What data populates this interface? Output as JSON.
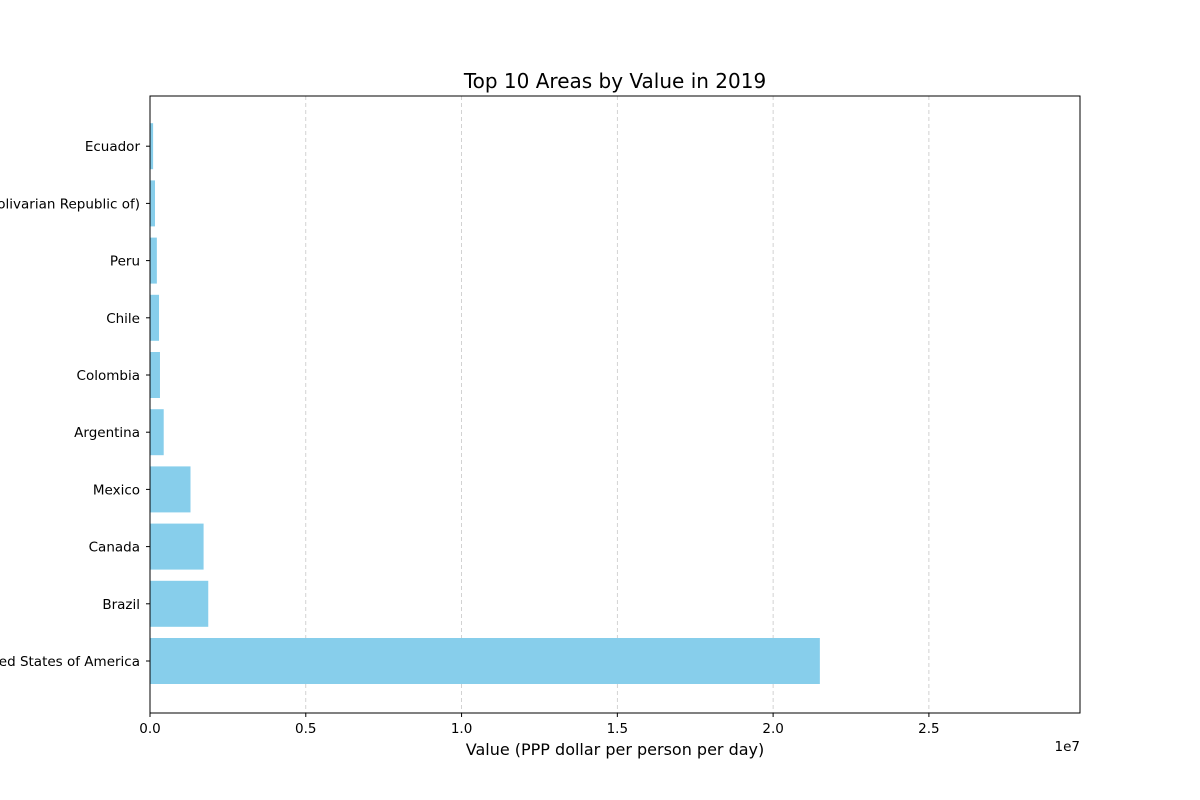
{
  "chart_data": {
    "type": "bar",
    "orientation": "horizontal",
    "title": "Top 10 Areas by Value in 2019",
    "xlabel": "Value (PPP dollar per person per day)",
    "ylabel": "",
    "x_offset_label": "1e7",
    "xlim": [
      0,
      29850000
    ],
    "xticks": [
      0,
      5000000,
      10000000,
      15000000,
      20000000,
      25000000
    ],
    "xtick_labels": [
      "0.0",
      "0.5",
      "1.0",
      "1.5",
      "2.0",
      "2.5"
    ],
    "grid": "x-dashed",
    "categories": [
      "United States of America",
      "Brazil",
      "Canada",
      "Mexico",
      "Argentina",
      "Colombia",
      "Chile",
      "Peru",
      "Venezuela (Bolivarian Republic of)",
      "Ecuador"
    ],
    "values": [
      21500000,
      1870000,
      1720000,
      1300000,
      440000,
      320000,
      290000,
      220000,
      160000,
      100000
    ],
    "bar_color": "#87CEEB"
  }
}
